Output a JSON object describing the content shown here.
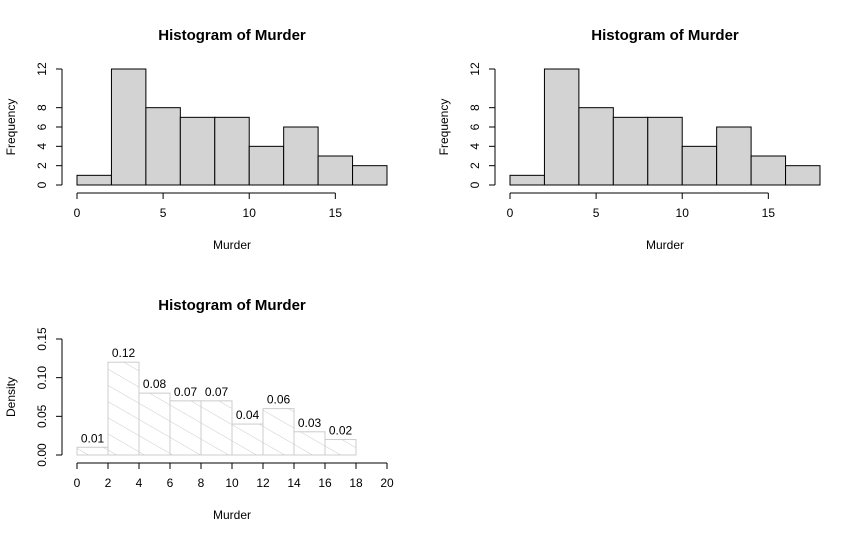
{
  "chart_data": [
    {
      "type": "bar",
      "subtype": "histogram",
      "title": "Histogram of Murder",
      "xlabel": "Murder",
      "ylabel": "Frequency",
      "breaks": [
        0,
        2,
        4,
        6,
        8,
        10,
        12,
        14,
        16,
        18
      ],
      "values": [
        1,
        12,
        8,
        7,
        7,
        4,
        6,
        3,
        2
      ],
      "xlim": [
        0,
        18
      ],
      "ylim": [
        0,
        12
      ],
      "xticks": [
        0,
        5,
        10,
        15
      ],
      "yticks": [
        0,
        2,
        4,
        6,
        8,
        12
      ],
      "fill": "#d3d3d3",
      "stroke": "#000000",
      "hatched": false,
      "labels": false,
      "grid": false
    },
    {
      "type": "bar",
      "subtype": "histogram",
      "title": "Histogram of Murder",
      "xlabel": "Murder",
      "ylabel": "Frequency",
      "breaks": [
        0,
        2,
        4,
        6,
        8,
        10,
        12,
        14,
        16,
        18
      ],
      "values": [
        1,
        12,
        8,
        7,
        7,
        4,
        6,
        3,
        2
      ],
      "xlim": [
        0,
        18
      ],
      "ylim": [
        0,
        12
      ],
      "xticks": [
        0,
        5,
        10,
        15
      ],
      "yticks": [
        0,
        2,
        4,
        6,
        8,
        12
      ],
      "fill": "#d3d3d3",
      "stroke": "#000000",
      "hatched": false,
      "labels": false,
      "grid": false
    },
    {
      "type": "bar",
      "subtype": "histogram",
      "title": "Histogram of Murder",
      "xlabel": "Murder",
      "ylabel": "Density",
      "breaks": [
        0,
        2,
        4,
        6,
        8,
        10,
        12,
        14,
        16,
        18
      ],
      "values": [
        0.01,
        0.12,
        0.08,
        0.07,
        0.07,
        0.04,
        0.06,
        0.03,
        0.02
      ],
      "data_labels": [
        "0.01",
        "0.12",
        "0.08",
        "0.07",
        "0.07",
        "0.04",
        "0.06",
        "0.03",
        "0.02"
      ],
      "xlim": [
        0,
        20
      ],
      "ylim": [
        0,
        0.15
      ],
      "xticks": [
        0,
        2,
        4,
        6,
        8,
        10,
        12,
        14,
        16,
        18,
        20
      ],
      "yticks": [
        0.0,
        0.05,
        0.1,
        0.15
      ],
      "ytick_labels": [
        "0.00",
        "0.05",
        "0.10",
        "0.15"
      ],
      "fill": "#ffffff",
      "stroke": "#cccccc",
      "hatched": true,
      "labels": true,
      "grid": false
    }
  ]
}
